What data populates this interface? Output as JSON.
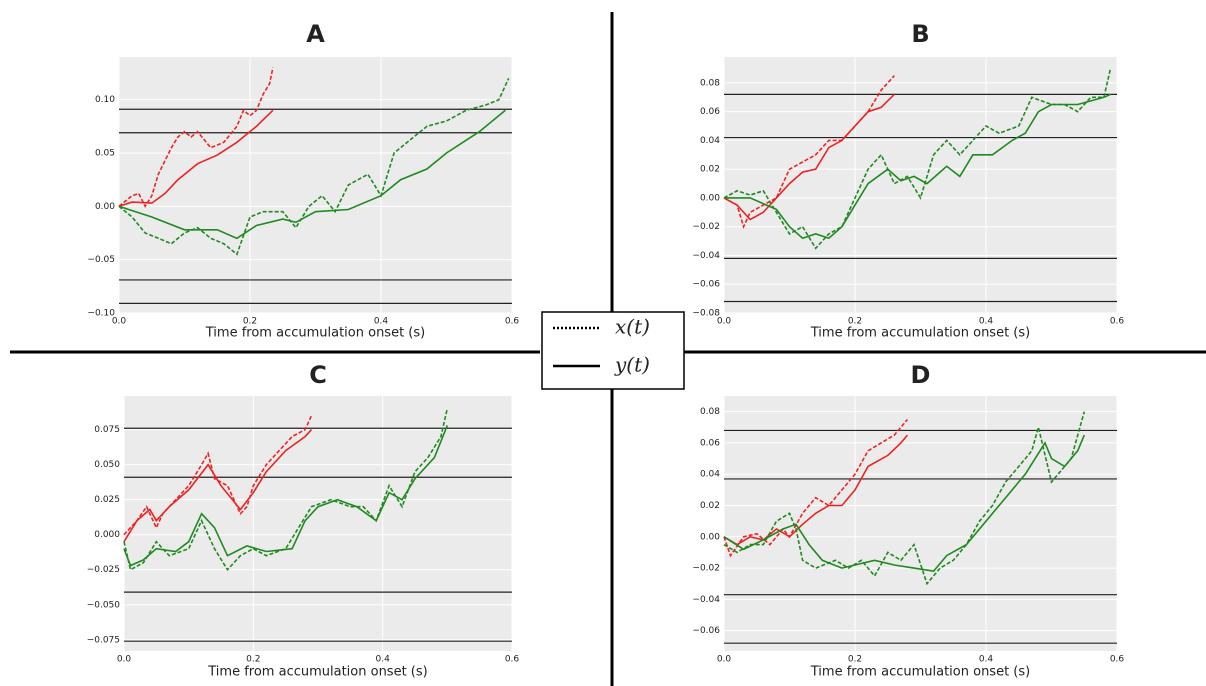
{
  "chart_data": [
    {
      "type": "line",
      "title": "A",
      "xlabel": "Time from accumulation onset (s)",
      "xlim": [
        0,
        0.6
      ],
      "xticks": [
        {
          "value": 0,
          "label": "0.0"
        },
        0.2,
        0.4,
        0.6
      ],
      "ylim": [
        -0.1,
        0.14
      ],
      "yticks": [
        {
          "value": -0.1,
          "label": "−0.10"
        },
        {
          "value": -0.05,
          "label": "−0.05"
        },
        {
          "value": 0,
          "label": "0.00"
        },
        0.05,
        {
          "value": 0.1,
          "label": "0.10"
        }
      ],
      "grid": true,
      "thresholds": [
        0.091,
        0.069,
        -0.069,
        -0.091
      ],
      "threshold_color": "#222222",
      "series": [
        {
          "color": "#ee2222",
          "linestyle": "dashed",
          "x": [
            0,
            0.01,
            0.02,
            0.03,
            0.04,
            0.05,
            0.06,
            0.08,
            0.09,
            0.1,
            0.11,
            0.12,
            0.14,
            0.16,
            0.18,
            0.19,
            0.2,
            0.21,
            0.22,
            0.23,
            0.235
          ],
          "values": [
            0,
            0.005,
            0.01,
            0.012,
            0.0,
            0.01,
            0.03,
            0.055,
            0.065,
            0.07,
            0.065,
            0.07,
            0.055,
            0.06,
            0.075,
            0.09,
            0.085,
            0.09,
            0.105,
            0.115,
            0.13
          ]
        },
        {
          "color": "#ee2222",
          "linestyle": "solid",
          "x": [
            0,
            0.02,
            0.05,
            0.07,
            0.09,
            0.12,
            0.15,
            0.18,
            0.21,
            0.235
          ],
          "values": [
            0,
            0.004,
            0.003,
            0.012,
            0.025,
            0.04,
            0.048,
            0.06,
            0.075,
            0.09
          ]
        },
        {
          "color": "#1f8a1f",
          "linestyle": "dashed",
          "x": [
            0,
            0.02,
            0.04,
            0.06,
            0.08,
            0.1,
            0.12,
            0.14,
            0.16,
            0.18,
            0.2,
            0.22,
            0.25,
            0.27,
            0.29,
            0.31,
            0.33,
            0.35,
            0.38,
            0.4,
            0.42,
            0.44,
            0.47,
            0.5,
            0.53,
            0.56,
            0.58,
            0.595
          ],
          "values": [
            0,
            -0.01,
            -0.025,
            -0.03,
            -0.035,
            -0.025,
            -0.02,
            -0.03,
            -0.035,
            -0.045,
            -0.01,
            -0.005,
            -0.005,
            -0.02,
            0.0,
            0.01,
            -0.005,
            0.02,
            0.03,
            0.01,
            0.05,
            0.06,
            0.075,
            0.08,
            0.09,
            0.095,
            0.1,
            0.12
          ]
        },
        {
          "color": "#1f8a1f",
          "linestyle": "solid",
          "x": [
            0,
            0.05,
            0.1,
            0.15,
            0.18,
            0.21,
            0.25,
            0.27,
            0.3,
            0.35,
            0.4,
            0.43,
            0.47,
            0.5,
            0.55,
            0.59
          ],
          "values": [
            0,
            -0.01,
            -0.022,
            -0.022,
            -0.03,
            -0.018,
            -0.012,
            -0.015,
            -0.005,
            -0.003,
            0.01,
            0.025,
            0.035,
            0.05,
            0.07,
            0.09
          ]
        }
      ]
    },
    {
      "type": "line",
      "title": "B",
      "xlabel": "Time from accumulation onset (s)",
      "xlim": [
        0,
        0.6
      ],
      "xticks": [
        {
          "value": 0,
          "label": "0.0"
        },
        0.2,
        0.4,
        0.6
      ],
      "ylim": [
        -0.08,
        0.098
      ],
      "yticks": [
        {
          "value": -0.08,
          "label": "−0.08"
        },
        {
          "value": -0.06,
          "label": "−0.06"
        },
        {
          "value": -0.04,
          "label": "−0.04"
        },
        {
          "value": -0.02,
          "label": "−0.02"
        },
        {
          "value": 0,
          "label": "0.00"
        },
        0.02,
        0.04,
        0.06,
        0.08
      ],
      "grid": true,
      "thresholds": [
        0.072,
        0.042,
        -0.042,
        -0.072
      ],
      "threshold_color": "#222222",
      "series": [
        {
          "color": "#ee2222",
          "linestyle": "dashed",
          "x": [
            0,
            0.02,
            0.03,
            0.04,
            0.06,
            0.08,
            0.1,
            0.12,
            0.14,
            0.16,
            0.18,
            0.2,
            0.22,
            0.24,
            0.25,
            0.26
          ],
          "values": [
            0,
            -0.005,
            -0.02,
            -0.01,
            -0.005,
            0.0,
            0.02,
            0.025,
            0.03,
            0.04,
            0.04,
            0.05,
            0.06,
            0.075,
            0.08,
            0.085
          ]
        },
        {
          "color": "#ee2222",
          "linestyle": "solid",
          "x": [
            0,
            0.02,
            0.04,
            0.06,
            0.08,
            0.1,
            0.12,
            0.14,
            0.16,
            0.18,
            0.2,
            0.22,
            0.24,
            0.26
          ],
          "values": [
            0,
            -0.005,
            -0.015,
            -0.01,
            0.0,
            0.01,
            0.018,
            0.02,
            0.035,
            0.04,
            0.05,
            0.06,
            0.063,
            0.072
          ]
        },
        {
          "color": "#1f8a1f",
          "linestyle": "dashed",
          "x": [
            0,
            0.02,
            0.04,
            0.06,
            0.08,
            0.1,
            0.12,
            0.14,
            0.16,
            0.18,
            0.2,
            0.22,
            0.24,
            0.26,
            0.28,
            0.3,
            0.32,
            0.34,
            0.36,
            0.38,
            0.4,
            0.42,
            0.45,
            0.47,
            0.5,
            0.52,
            0.54,
            0.56,
            0.58,
            0.59
          ],
          "values": [
            0,
            0.005,
            0.002,
            0.005,
            -0.01,
            -0.025,
            -0.02,
            -0.035,
            -0.025,
            -0.02,
            0.0,
            0.02,
            0.03,
            0.01,
            0.015,
            0.0,
            0.03,
            0.04,
            0.03,
            0.04,
            0.05,
            0.045,
            0.05,
            0.07,
            0.065,
            0.065,
            0.06,
            0.07,
            0.07,
            0.09
          ]
        },
        {
          "color": "#1f8a1f",
          "linestyle": "solid",
          "x": [
            0,
            0.04,
            0.08,
            0.1,
            0.12,
            0.14,
            0.16,
            0.18,
            0.2,
            0.22,
            0.25,
            0.27,
            0.29,
            0.31,
            0.34,
            0.36,
            0.38,
            0.41,
            0.44,
            0.46,
            0.48,
            0.5,
            0.54,
            0.58,
            0.59
          ],
          "values": [
            0,
            0.0,
            -0.008,
            -0.02,
            -0.028,
            -0.025,
            -0.028,
            -0.02,
            -0.005,
            0.01,
            0.02,
            0.012,
            0.015,
            0.01,
            0.022,
            0.015,
            0.03,
            0.03,
            0.04,
            0.045,
            0.06,
            0.065,
            0.065,
            0.07,
            0.072
          ]
        }
      ]
    },
    {
      "type": "line",
      "title": "C",
      "xlabel": "Time from accumulation onset (s)",
      "xlim": [
        0,
        0.6
      ],
      "xticks": [
        {
          "value": 0,
          "label": "0.0"
        },
        0.2,
        0.4,
        0.6
      ],
      "ylim": [
        -0.083,
        0.099
      ],
      "yticks": [
        {
          "value": -0.075,
          "label": "−0.075"
        },
        {
          "value": -0.05,
          "label": "−0.050"
        },
        {
          "value": -0.025,
          "label": "−0.025"
        },
        {
          "value": 0,
          "label": "0.000"
        },
        0.025,
        {
          "value": 0.05,
          "label": "0.050"
        },
        0.075
      ],
      "grid": true,
      "thresholds": [
        0.076,
        0.041,
        -0.041,
        -0.076
      ],
      "threshold_color": "#222222",
      "series": [
        {
          "color": "#ee2222",
          "linestyle": "dashed",
          "x": [
            0,
            0.02,
            0.035,
            0.05,
            0.06,
            0.08,
            0.1,
            0.12,
            0.13,
            0.14,
            0.16,
            0.18,
            0.19,
            0.2,
            0.22,
            0.24,
            0.26,
            0.28,
            0.29
          ],
          "values": [
            0,
            0.01,
            0.02,
            0.005,
            0.015,
            0.025,
            0.035,
            0.05,
            0.058,
            0.04,
            0.035,
            0.015,
            0.02,
            0.035,
            0.05,
            0.06,
            0.07,
            0.075,
            0.085
          ]
        },
        {
          "color": "#ee2222",
          "linestyle": "solid",
          "x": [
            0,
            0.02,
            0.04,
            0.05,
            0.07,
            0.1,
            0.13,
            0.15,
            0.18,
            0.2,
            0.22,
            0.25,
            0.28,
            0.29
          ],
          "values": [
            -0.005,
            0.01,
            0.018,
            0.01,
            0.02,
            0.032,
            0.05,
            0.035,
            0.018,
            0.03,
            0.045,
            0.06,
            0.07,
            0.075
          ]
        },
        {
          "color": "#1f8a1f",
          "linestyle": "dashed",
          "x": [
            0,
            0.01,
            0.03,
            0.05,
            0.07,
            0.1,
            0.12,
            0.14,
            0.16,
            0.18,
            0.2,
            0.22,
            0.25,
            0.27,
            0.29,
            0.32,
            0.35,
            0.37,
            0.39,
            0.41,
            0.43,
            0.45,
            0.47,
            0.49,
            0.5
          ],
          "values": [
            -0.005,
            -0.025,
            -0.02,
            -0.005,
            -0.015,
            -0.01,
            0.01,
            -0.01,
            -0.025,
            -0.015,
            -0.01,
            -0.015,
            -0.01,
            0.005,
            0.02,
            0.025,
            0.02,
            0.02,
            0.01,
            0.035,
            0.02,
            0.045,
            0.055,
            0.07,
            0.09
          ]
        },
        {
          "color": "#1f8a1f",
          "linestyle": "solid",
          "x": [
            0,
            0.01,
            0.03,
            0.05,
            0.08,
            0.1,
            0.12,
            0.14,
            0.16,
            0.19,
            0.22,
            0.26,
            0.28,
            0.3,
            0.33,
            0.36,
            0.39,
            0.41,
            0.43,
            0.45,
            0.48,
            0.5
          ],
          "values": [
            -0.01,
            -0.022,
            -0.018,
            -0.01,
            -0.012,
            -0.005,
            0.015,
            0.005,
            -0.015,
            -0.008,
            -0.012,
            -0.01,
            0.01,
            0.02,
            0.025,
            0.02,
            0.01,
            0.03,
            0.025,
            0.04,
            0.055,
            0.078
          ]
        }
      ]
    },
    {
      "type": "line",
      "title": "D",
      "xlabel": "Time from accumulation onset (s)",
      "xlim": [
        0,
        0.6
      ],
      "xticks": [
        {
          "value": 0,
          "label": "0.0"
        },
        0.2,
        0.4,
        0.6
      ],
      "ylim": [
        -0.073,
        0.09
      ],
      "yticks": [
        {
          "value": -0.06,
          "label": "−0.06"
        },
        {
          "value": -0.04,
          "label": "−0.04"
        },
        {
          "value": -0.02,
          "label": "−0.02"
        },
        {
          "value": 0,
          "label": "0.00"
        },
        0.02,
        0.04,
        0.06,
        0.08
      ],
      "grid": true,
      "thresholds": [
        0.068,
        0.037,
        -0.037,
        -0.068
      ],
      "threshold_color": "#222222",
      "series": [
        {
          "color": "#ee2222",
          "linestyle": "dashed",
          "x": [
            0,
            0.01,
            0.03,
            0.05,
            0.07,
            0.09,
            0.1,
            0.12,
            0.14,
            0.16,
            0.18,
            0.2,
            0.22,
            0.24,
            0.26,
            0.27,
            0.28
          ],
          "values": [
            0,
            -0.012,
            0.0,
            0.002,
            -0.005,
            0.005,
            0.0,
            0.015,
            0.025,
            0.02,
            0.03,
            0.04,
            0.055,
            0.06,
            0.065,
            0.07,
            0.075
          ]
        },
        {
          "color": "#ee2222",
          "linestyle": "solid",
          "x": [
            0,
            0.02,
            0.04,
            0.06,
            0.08,
            0.1,
            0.12,
            0.14,
            0.16,
            0.18,
            0.2,
            0.22,
            0.25,
            0.27,
            0.28
          ],
          "values": [
            0,
            -0.005,
            0.0,
            -0.002,
            0.005,
            0.0,
            0.008,
            0.015,
            0.02,
            0.02,
            0.03,
            0.045,
            0.052,
            0.06,
            0.065
          ]
        },
        {
          "color": "#1f8a1f",
          "linestyle": "dashed",
          "x": [
            0,
            0.02,
            0.04,
            0.06,
            0.08,
            0.1,
            0.11,
            0.12,
            0.14,
            0.17,
            0.19,
            0.21,
            0.23,
            0.25,
            0.27,
            0.29,
            0.31,
            0.33,
            0.35,
            0.37,
            0.39,
            0.41,
            0.43,
            0.45,
            0.47,
            0.48,
            0.5,
            0.52,
            0.53,
            0.55
          ],
          "values": [
            -0.005,
            -0.01,
            -0.005,
            -0.005,
            0.01,
            0.015,
            0.005,
            -0.015,
            -0.02,
            -0.015,
            -0.02,
            -0.015,
            -0.025,
            -0.01,
            -0.015,
            -0.005,
            -0.03,
            -0.02,
            -0.015,
            -0.005,
            0.01,
            0.02,
            0.035,
            0.045,
            0.055,
            0.07,
            0.035,
            0.045,
            0.05,
            0.08
          ]
        },
        {
          "color": "#1f8a1f",
          "linestyle": "solid",
          "x": [
            0,
            0.03,
            0.06,
            0.09,
            0.11,
            0.13,
            0.15,
            0.18,
            0.2,
            0.23,
            0.26,
            0.29,
            0.32,
            0.34,
            0.37,
            0.4,
            0.43,
            0.46,
            0.49,
            0.5,
            0.52,
            0.54,
            0.55
          ],
          "values": [
            0,
            -0.008,
            -0.002,
            0.005,
            0.008,
            -0.005,
            -0.015,
            -0.02,
            -0.018,
            -0.015,
            -0.018,
            -0.02,
            -0.022,
            -0.012,
            -0.005,
            0.01,
            0.025,
            0.04,
            0.06,
            0.05,
            0.045,
            0.055,
            0.065
          ]
        }
      ]
    }
  ],
  "legend": {
    "entries": [
      {
        "label": "x(t)",
        "linestyle": "dotted"
      },
      {
        "label": "y(t)",
        "linestyle": "solid"
      }
    ]
  }
}
